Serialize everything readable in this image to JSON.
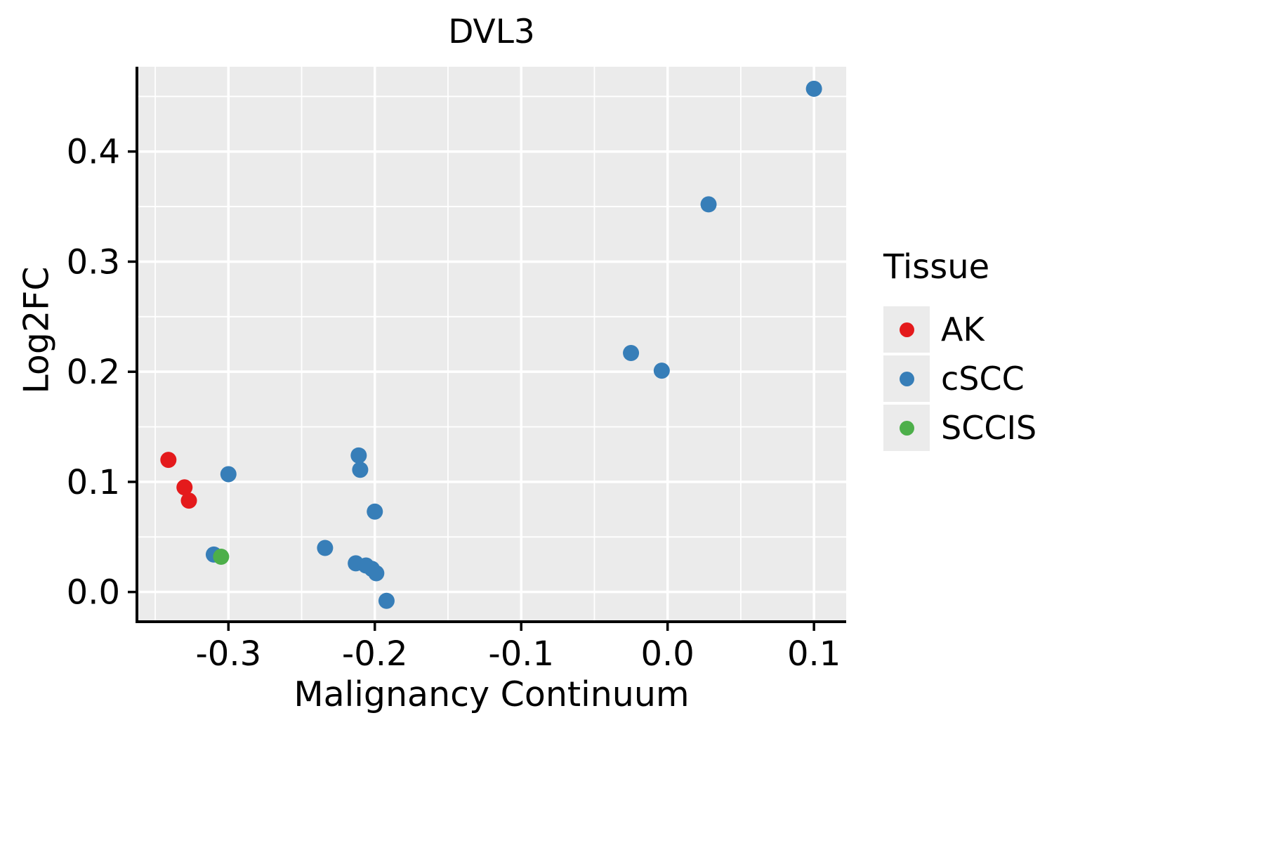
{
  "figure": {
    "title": "DVL3",
    "xlabel": "Malignancy Continuum",
    "ylabel": "Log2FC"
  },
  "legend": {
    "title": "Tissue",
    "items": [
      {
        "label": "AK",
        "color": "#E41A1C"
      },
      {
        "label": "cSCC",
        "color": "#377EB8"
      },
      {
        "label": "SCCIS",
        "color": "#4DAF4A"
      }
    ]
  },
  "chart_data": {
    "type": "scatter",
    "title": "DVL3",
    "xlabel": "Malignancy Continuum",
    "ylabel": "Log2FC",
    "xlim": [
      -0.3625,
      0.122
    ],
    "ylim": [
      -0.027,
      0.477
    ],
    "x_ticks": [
      -0.3,
      -0.2,
      -0.1,
      0.0,
      0.1
    ],
    "y_ticks": [
      0.0,
      0.1,
      0.2,
      0.3,
      0.4
    ],
    "x_minor_ticks": [
      -0.35,
      -0.25,
      -0.15,
      -0.05,
      0.05
    ],
    "y_minor_ticks": [
      0.05,
      0.15,
      0.25,
      0.35,
      0.45
    ],
    "grid": true,
    "legend_position": "right",
    "series": [
      {
        "name": "AK",
        "color": "#E41A1C",
        "points": [
          [
            -0.341,
            0.12
          ],
          [
            -0.33,
            0.095
          ],
          [
            -0.327,
            0.083
          ]
        ]
      },
      {
        "name": "cSCC",
        "color": "#377EB8",
        "points": [
          [
            -0.31,
            0.034
          ],
          [
            -0.3,
            0.107
          ],
          [
            -0.234,
            0.04
          ],
          [
            -0.213,
            0.026
          ],
          [
            -0.211,
            0.124
          ],
          [
            -0.21,
            0.111
          ],
          [
            -0.206,
            0.024
          ],
          [
            -0.202,
            0.021
          ],
          [
            -0.2,
            0.073
          ],
          [
            -0.199,
            0.017
          ],
          [
            -0.192,
            -0.008
          ],
          [
            -0.025,
            0.217
          ],
          [
            -0.004,
            0.201
          ],
          [
            0.028,
            0.352
          ],
          [
            0.1,
            0.457
          ]
        ]
      },
      {
        "name": "SCCIS",
        "color": "#4DAF4A",
        "points": [
          [
            -0.305,
            0.032
          ]
        ]
      }
    ]
  },
  "style": {
    "panel_bg": "#EBEBEB",
    "grid_color": "#FFFFFF",
    "axis_color": "#000000",
    "point_radius": 11.5,
    "legend_key_bg": "#EBEBEB"
  }
}
